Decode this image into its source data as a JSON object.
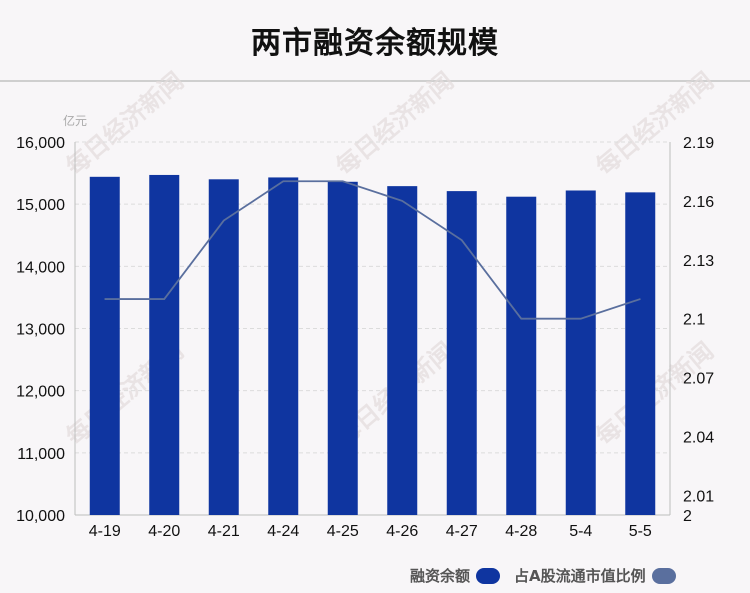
{
  "header": {
    "title": "两市融资余额规模"
  },
  "chart_data": {
    "type": "bar",
    "categories": [
      "4-19",
      "4-20",
      "4-21",
      "4-24",
      "4-25",
      "4-26",
      "4-27",
      "4-28",
      "5-4",
      "5-5"
    ],
    "series": [
      {
        "name": "融资余额",
        "type": "bar",
        "axis": "left",
        "color": "#0f35a0",
        "values": [
          15440,
          15470,
          15400,
          15430,
          15360,
          15290,
          15210,
          15120,
          15220,
          15190
        ]
      },
      {
        "name": "占A股流通市值比例",
        "type": "line",
        "axis": "right",
        "color": "#5a6f9e",
        "values": [
          2.11,
          2.11,
          2.15,
          2.17,
          2.17,
          2.16,
          2.14,
          2.1,
          2.1,
          2.11
        ]
      }
    ],
    "y_left": {
      "unit": "亿元",
      "min": 10000,
      "max": 16000,
      "ticks": [
        "10,000",
        "11,000",
        "12,000",
        "13,000",
        "14,000",
        "15,000",
        "16,000"
      ]
    },
    "y_right": {
      "min": 2.0,
      "max": 2.19,
      "ticks": [
        {
          "value": 2.0,
          "label": "2"
        },
        {
          "value": 2.01,
          "label": "2.01"
        },
        {
          "value": 2.04,
          "label": "2.04"
        },
        {
          "value": 2.07,
          "label": "2.07"
        },
        {
          "value": 2.1,
          "label": "2.1"
        },
        {
          "value": 2.13,
          "label": "2.13"
        },
        {
          "value": 2.16,
          "label": "2.16"
        },
        {
          "value": 2.19,
          "label": "2.19"
        }
      ]
    },
    "grid": true,
    "legend_position": "bottom-right"
  },
  "watermark": "每日经济新闻"
}
